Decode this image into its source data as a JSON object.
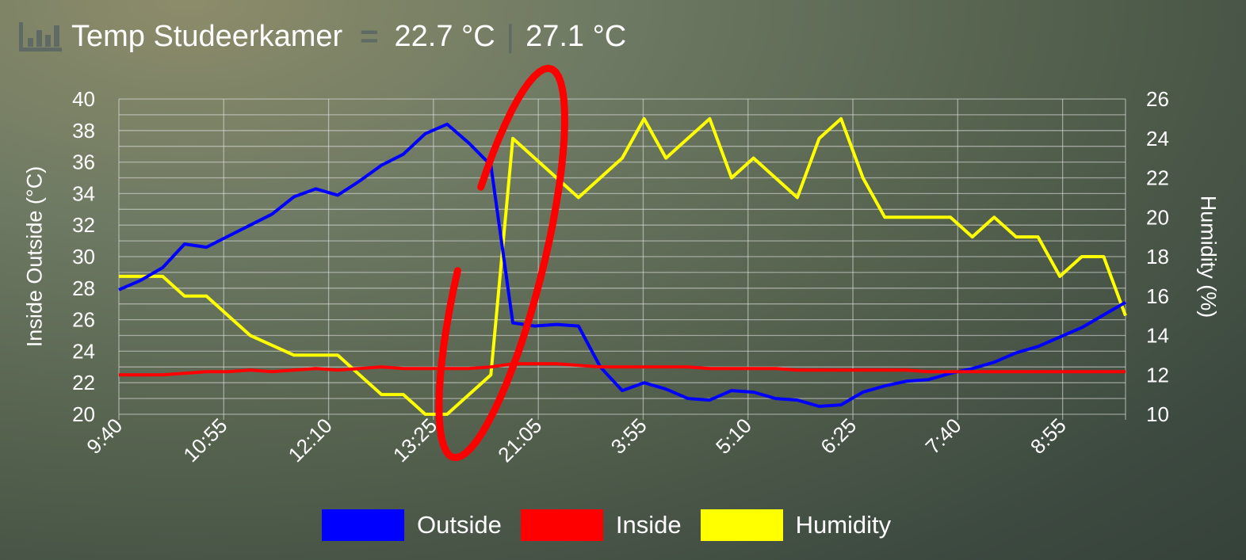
{
  "header": {
    "title": "Temp Studeerkamer",
    "temp_inside": "22.7 °C",
    "separator": "|",
    "temp_outside": "27.1 °C"
  },
  "chart_data": {
    "type": "line",
    "x": [
      "9:40",
      "9:55",
      "10:10",
      "10:25",
      "10:40",
      "10:55",
      "11:10",
      "11:25",
      "11:40",
      "11:55",
      "12:10",
      "12:25",
      "12:40",
      "12:55",
      "13:10",
      "13:25",
      "13:40",
      "13:55",
      "21:05",
      "21:20",
      "21:35",
      "21:50",
      "22:05",
      "3:55",
      "4:10",
      "4:25",
      "4:40",
      "4:55",
      "5:10",
      "5:25",
      "5:40",
      "5:55",
      "6:10",
      "6:25",
      "6:40",
      "6:55",
      "7:10",
      "7:25",
      "7:40",
      "7:55",
      "8:10",
      "8:25",
      "8:40",
      "8:55",
      "9:10",
      "9:25",
      "9:40"
    ],
    "x_tick_labels": [
      "9:40",
      "10:55",
      "12:10",
      "13:25",
      "21:05",
      "3:55",
      "5:10",
      "6:25",
      "7:40",
      "8:55"
    ],
    "series": [
      {
        "name": "Outside",
        "axis": "left",
        "color": "#0000ff",
        "values": [
          27.9,
          28.5,
          29.3,
          30.8,
          30.6,
          31.3,
          32.0,
          32.7,
          33.8,
          34.3,
          33.9,
          34.8,
          35.8,
          36.5,
          37.8,
          38.4,
          37.2,
          35.8,
          25.8,
          25.6,
          25.7,
          25.6,
          23.0,
          21.5,
          22.0,
          21.6,
          21.0,
          20.9,
          21.5,
          21.4,
          21.0,
          20.9,
          20.5,
          20.6,
          21.4,
          21.8,
          22.1,
          22.2,
          22.6,
          22.9,
          23.3,
          23.9,
          24.3,
          24.9,
          25.5,
          26.3,
          27.1
        ]
      },
      {
        "name": "Inside",
        "axis": "left",
        "color": "#ff0000",
        "values": [
          22.5,
          22.5,
          22.5,
          22.6,
          22.7,
          22.7,
          22.8,
          22.7,
          22.8,
          22.9,
          22.8,
          22.9,
          23.0,
          22.9,
          22.9,
          22.9,
          22.9,
          23.0,
          23.2,
          23.2,
          23.2,
          23.1,
          23.0,
          23.0,
          23.0,
          23.0,
          23.0,
          22.9,
          22.9,
          22.9,
          22.9,
          22.8,
          22.8,
          22.8,
          22.8,
          22.8,
          22.8,
          22.7,
          22.7,
          22.7,
          22.7,
          22.7,
          22.7,
          22.7,
          22.7,
          22.7,
          22.7
        ]
      },
      {
        "name": "Humidity",
        "axis": "right",
        "color": "#ffff00",
        "values": [
          17,
          17,
          17,
          16,
          16,
          15,
          14,
          13.5,
          13,
          13,
          13,
          12,
          11,
          11,
          10,
          10,
          11,
          12,
          24,
          23,
          22,
          21,
          22,
          23,
          25,
          23,
          24,
          25,
          22,
          23,
          22,
          21,
          24,
          25,
          22,
          20,
          20,
          20,
          20,
          19,
          20,
          19,
          19,
          17,
          18,
          18,
          15
        ]
      }
    ],
    "ylabel_left": "Inside Outside (°C)",
    "ylabel_right": "Humidity (%)",
    "ylim_left": [
      20,
      40
    ],
    "ylim_right": [
      10,
      26
    ],
    "y_ticks_left": [
      "20",
      "22",
      "24",
      "26",
      "28",
      "30",
      "32",
      "34",
      "36",
      "38",
      "40"
    ],
    "y_ticks_right": [
      "10",
      "12",
      "14",
      "16",
      "18",
      "20",
      "22",
      "24",
      "26"
    ],
    "grid": true,
    "legend_position": "bottom",
    "annotation": {
      "type": "ellipse",
      "color": "#ff0000"
    }
  }
}
